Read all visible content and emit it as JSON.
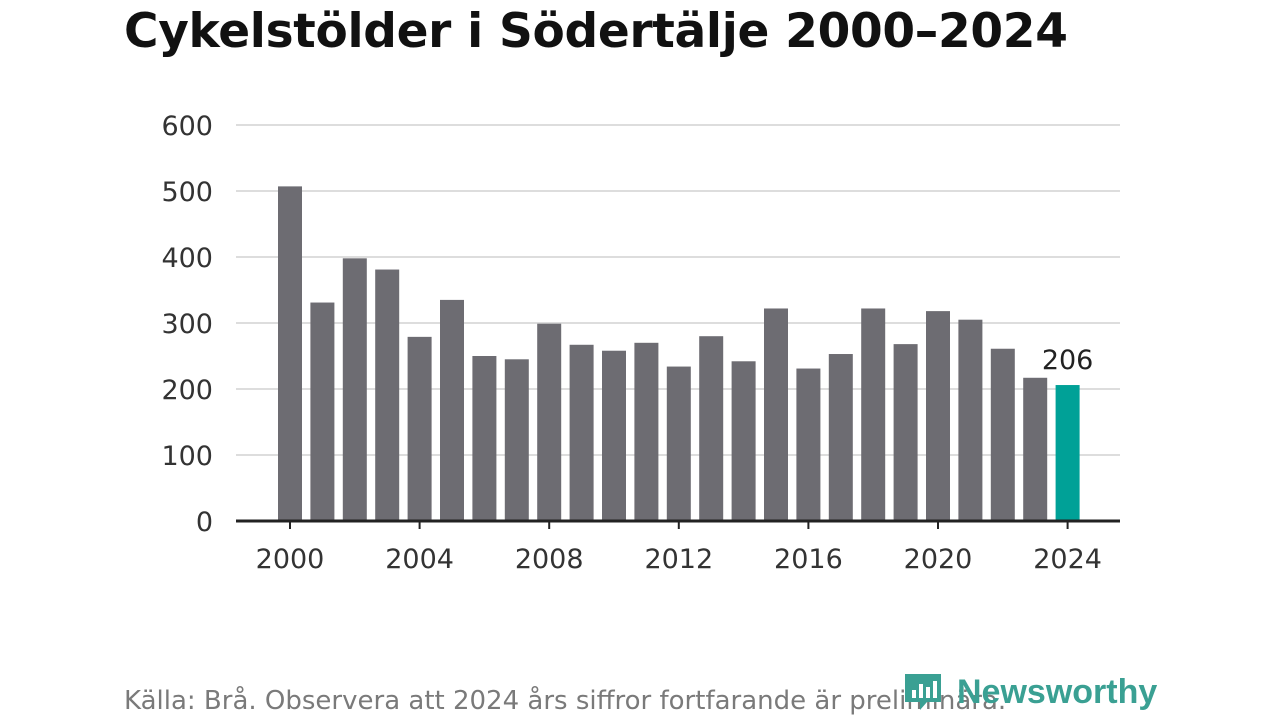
{
  "title": "Cykelstölder i Södertälje 2000–2024",
  "source_note": "Källa: Brå. Observera att 2024 års siffror fortfarande är preliminära.",
  "brand": {
    "name": "Newsworthy",
    "icon": "newsworthy-logo-icon",
    "color": "#3aa093"
  },
  "chart_data": {
    "type": "bar",
    "title": "Cykelstölder i Södertälje 2000–2024",
    "x": [
      2000,
      2001,
      2002,
      2003,
      2004,
      2005,
      2006,
      2007,
      2008,
      2009,
      2010,
      2011,
      2012,
      2013,
      2014,
      2015,
      2016,
      2017,
      2018,
      2019,
      2020,
      2021,
      2022,
      2023,
      2024
    ],
    "values": [
      507,
      331,
      398,
      381,
      279,
      335,
      250,
      245,
      299,
      267,
      258,
      270,
      234,
      280,
      242,
      322,
      231,
      253,
      322,
      268,
      318,
      305,
      261,
      217,
      206
    ],
    "xticks": [
      "2000",
      "2004",
      "2008",
      "2012",
      "2016",
      "2020",
      "2024"
    ],
    "yticks": [
      "0",
      "100",
      "200",
      "300",
      "400",
      "500",
      "600"
    ],
    "ylim": [
      0,
      600
    ],
    "grid": true,
    "colors": {
      "bar": "#6d6c72",
      "highlight": "#00a197",
      "grid": "#dddddd",
      "axis": "#222222"
    },
    "highlight_index": 24,
    "annotations": [
      {
        "x": 2024,
        "text": "206"
      }
    ]
  }
}
